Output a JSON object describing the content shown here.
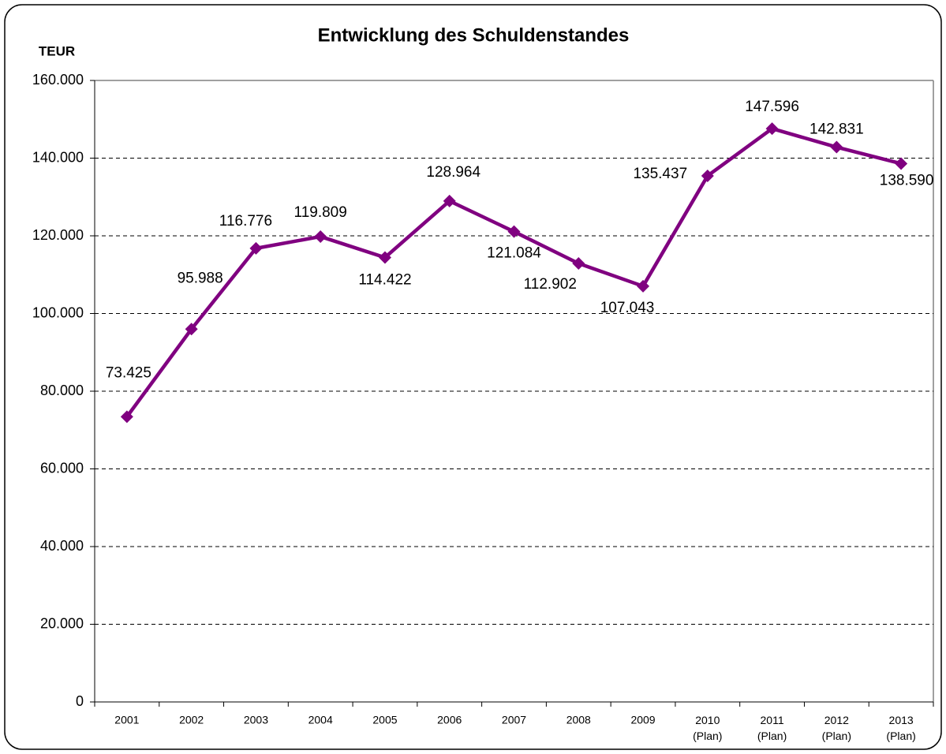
{
  "chart_data": {
    "type": "line",
    "title": "Entwicklung des Schuldenstandes",
    "ylabel": "TEUR",
    "categories": [
      "2001",
      "2002",
      "2003",
      "2004",
      "2005",
      "2006",
      "2007",
      "2008",
      "2009",
      "2010 (Plan)",
      "2011 (Plan)",
      "2012 (Plan)",
      "2013 (Plan)"
    ],
    "series": [
      {
        "name": "Schuldenstand",
        "color": "#800080",
        "values": [
          73425,
          95988,
          116776,
          119809,
          114422,
          128964,
          121084,
          112902,
          107043,
          135437,
          147596,
          142831,
          138590
        ],
        "value_labels": [
          "73.425",
          "95.988",
          "116.776",
          "119.809",
          "114.422",
          "128.964",
          "121.084",
          "112.902",
          "107.043",
          "135.437",
          "147.596",
          "142.831",
          "138.590"
        ]
      }
    ],
    "ylim": [
      0,
      160000
    ],
    "yticks": [
      0,
      {
        "value": 20000,
        "label": "20.000"
      },
      {
        "value": 40000,
        "label": "40.000"
      },
      {
        "value": 60000,
        "label": "60.000"
      },
      {
        "value": 80000,
        "label": "80.000"
      },
      {
        "value": 100000,
        "label": "100.000"
      },
      {
        "value": 120000,
        "label": "120.000"
      },
      {
        "value": 140000,
        "label": "140.000"
      },
      {
        "value": 160000,
        "label": "160.000"
      }
    ],
    "grid": true
  }
}
